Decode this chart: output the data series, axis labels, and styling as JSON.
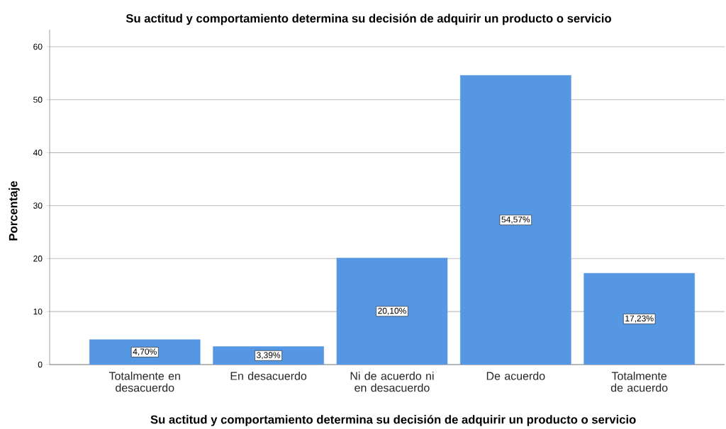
{
  "chart_data": {
    "type": "bar",
    "title": "Su actitud y comportamiento determina su decisión de adquirir un producto o servicio",
    "xlabel": "Su actitud y comportamiento determina su decisión de adquirir un producto o servicio",
    "ylabel": "Porcentaje",
    "categories": [
      "Totalmente en desacuerdo",
      "En desacuerdo",
      "Ni de acuerdo ni en desacuerdo",
      "De acuerdo",
      "Totalmente de acuerdo"
    ],
    "values": [
      4.7,
      3.39,
      20.1,
      54.57,
      17.23
    ],
    "value_labels": [
      "4,70%",
      "3,39%",
      "20,10%",
      "54,57%",
      "17,23%"
    ],
    "color": "#5597e2",
    "ylim": [
      0,
      63.2
    ],
    "yticks": [
      0,
      10,
      20,
      30,
      40,
      50,
      60
    ],
    "grid": "y"
  }
}
